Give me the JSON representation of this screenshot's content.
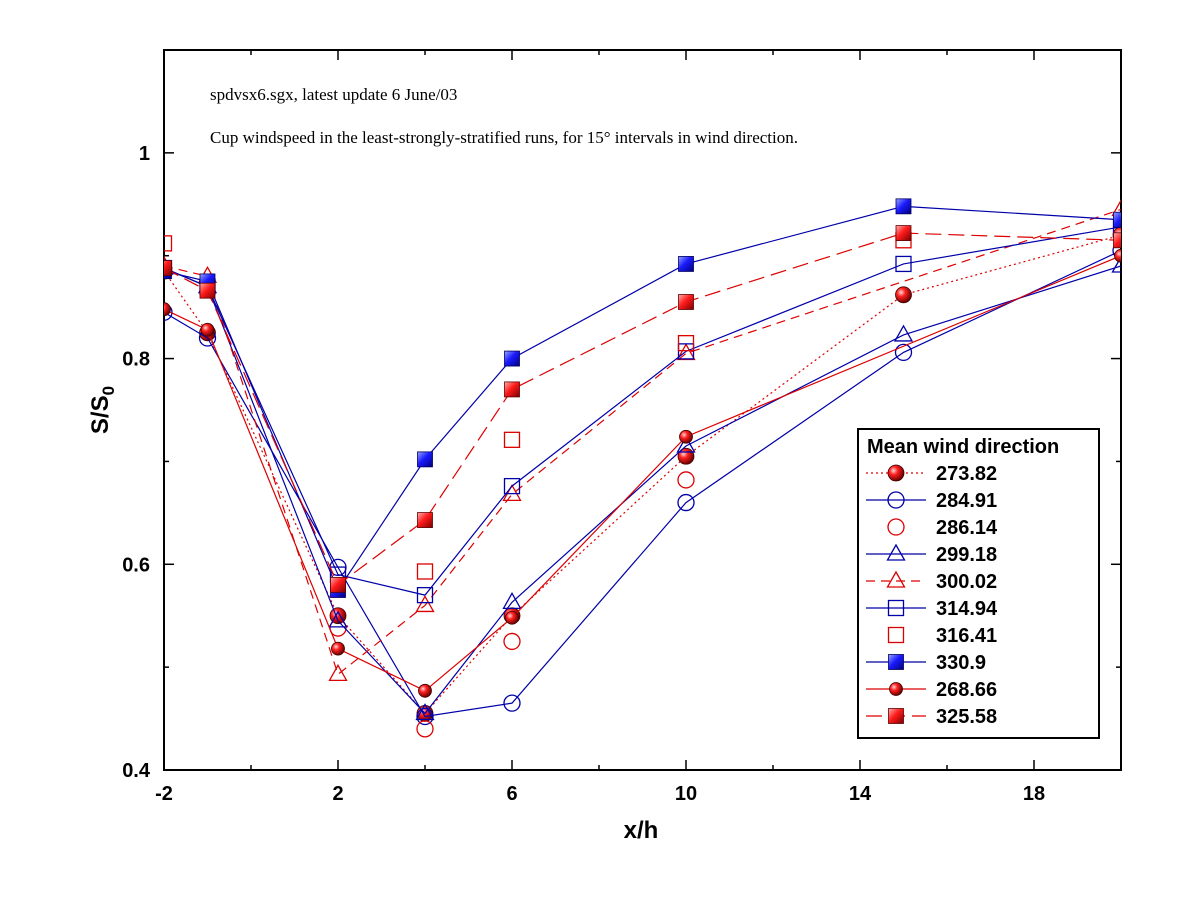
{
  "chart_data": {
    "type": "line",
    "xlabel": "x/h",
    "ylabel_main": "S/S",
    "ylabel_sub": "0",
    "xlim": [
      -2,
      20
    ],
    "ylim": [
      0.4,
      1.1
    ],
    "xticks": [
      -2,
      2,
      6,
      10,
      14,
      18
    ],
    "xtick_labels": [
      "-2",
      "2",
      "6",
      "10",
      "14",
      "18"
    ],
    "yticks": [
      0.4,
      0.6,
      0.8,
      1
    ],
    "ytick_labels": [
      "0.4",
      "0.6",
      "0.8",
      "1"
    ],
    "annotations": [
      "spdvsx6.sgx, latest update 6 June/03",
      "Cup windspeed in the least-strongly-stratified runs, for 15° intervals in wind direction."
    ],
    "legend_title": "Mean wind direction",
    "legend_position": "lower-right",
    "series": [
      {
        "name": "273.82",
        "color": "#dd0000",
        "line": "dotted",
        "marker": "ball-red",
        "x": [
          -2,
          -1,
          2,
          4,
          6,
          10,
          15,
          20
        ],
        "y": [
          0.885,
          0.825,
          0.55,
          0.455,
          0.55,
          0.705,
          0.862,
          0.92
        ]
      },
      {
        "name": "284.91",
        "color": "#0000aa",
        "line": "solid",
        "marker": "circle-open-blue",
        "x": [
          -2,
          -1,
          2,
          4,
          6,
          10,
          15,
          20
        ],
        "y": [
          0.845,
          0.82,
          0.597,
          0.452,
          0.465,
          0.66,
          0.806,
          0.905
        ]
      },
      {
        "name": "286.14",
        "color": "#dd0000",
        "line": "none",
        "marker": "circle-open-red",
        "x": [
          2,
          4,
          6,
          10
        ],
        "y": [
          0.538,
          0.44,
          0.525,
          0.682
        ]
      },
      {
        "name": "299.18",
        "color": "#0000aa",
        "line": "solid",
        "marker": "triangle-open-blue",
        "x": [
          -2,
          -1,
          2,
          4,
          6,
          10,
          15,
          20
        ],
        "y": [
          0.888,
          0.87,
          0.545,
          0.455,
          0.563,
          0.715,
          0.823,
          0.89
        ]
      },
      {
        "name": "300.02",
        "color": "#dd0000",
        "line": "dashed",
        "marker": "triangle-open-red",
        "x": [
          -2,
          -1,
          2,
          4,
          6,
          10,
          20
        ],
        "y": [
          0.89,
          0.88,
          0.493,
          0.56,
          0.668,
          0.805,
          0.945
        ]
      },
      {
        "name": "314.94",
        "color": "#0000aa",
        "line": "solid",
        "marker": "square-open-blue",
        "x": [
          -2,
          -1,
          2,
          4,
          6,
          10,
          15,
          20
        ],
        "y": [
          0.888,
          0.87,
          0.59,
          0.57,
          0.676,
          0.807,
          0.892,
          0.928
        ]
      },
      {
        "name": "316.41",
        "color": "#dd0000",
        "line": "none",
        "marker": "square-open-red",
        "x": [
          -2,
          4,
          6,
          10,
          15
        ],
        "y": [
          0.912,
          0.593,
          0.721,
          0.815,
          0.915
        ]
      },
      {
        "name": "330.9",
        "color": "#0000aa",
        "line": "solid",
        "marker": "square-filled-blue",
        "x": [
          -2,
          -1,
          2,
          4,
          6,
          10,
          15,
          20
        ],
        "y": [
          0.885,
          0.875,
          0.575,
          0.702,
          0.8,
          0.892,
          0.948,
          0.935
        ]
      },
      {
        "name": "268.66",
        "color": "#dd0000",
        "line": "solid",
        "marker": "ball-red-small",
        "x": [
          -2,
          -1,
          2,
          4,
          6,
          10,
          20
        ],
        "y": [
          0.848,
          0.828,
          0.518,
          0.477,
          0.548,
          0.724,
          0.9
        ]
      },
      {
        "name": "325.58",
        "color": "#dd0000",
        "line": "longdash",
        "marker": "square-filled-red",
        "x": [
          -2,
          -1,
          2,
          4,
          6,
          10,
          15,
          20
        ],
        "y": [
          0.888,
          0.866,
          0.58,
          0.643,
          0.77,
          0.855,
          0.922,
          0.915
        ]
      }
    ]
  }
}
